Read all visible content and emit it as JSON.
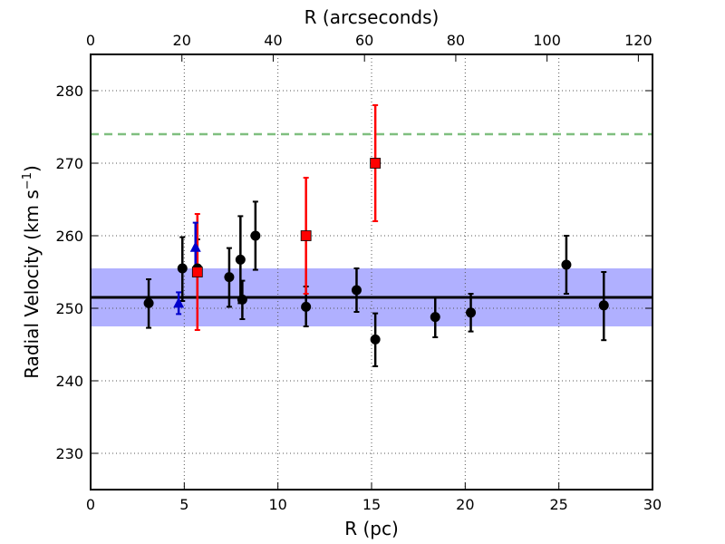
{
  "chart_data": {
    "type": "scatter",
    "xlabel": "R (pc)",
    "ylabel": "Radial Velocity (km s",
    "ylabel_sup": "−1",
    "ylabel_close": ")",
    "x2label": "R (arcseconds)",
    "xlim": [
      0,
      30
    ],
    "ylim": [
      225,
      285
    ],
    "x2lim": [
      0,
      123.1
    ],
    "xticks": [
      0,
      5,
      10,
      15,
      20,
      25,
      30
    ],
    "yticks": [
      230,
      240,
      250,
      260,
      270,
      280
    ],
    "x2ticks": [
      0,
      20,
      40,
      60,
      80,
      100,
      120
    ],
    "grid": true,
    "reference_lines": [
      {
        "kind": "mean",
        "y": 251.5,
        "color": "#000000",
        "style": "solid"
      },
      {
        "kind": "dashed",
        "y": 274.0,
        "color": "#7fbf7f",
        "style": "dashed"
      }
    ],
    "band": {
      "y_low": 247.5,
      "y_high": 255.5,
      "color": "#b0b0ff"
    },
    "series": [
      {
        "marker": "circle",
        "color": "#000000",
        "points": [
          {
            "x": 3.1,
            "y": 250.7,
            "lo": 247.3,
            "hi": 254.0
          },
          {
            "x": 4.9,
            "y": 255.5,
            "lo": 251.0,
            "hi": 259.8
          },
          {
            "x": 5.7,
            "y": 255.5,
            "lo": 251.5,
            "hi": 259.5
          },
          {
            "x": 7.4,
            "y": 254.3,
            "lo": 250.2,
            "hi": 258.3
          },
          {
            "x": 8.0,
            "y": 256.7,
            "lo": 250.7,
            "hi": 262.7
          },
          {
            "x": 8.1,
            "y": 251.2,
            "lo": 248.5,
            "hi": 253.8
          },
          {
            "x": 8.8,
            "y": 260.0,
            "lo": 255.3,
            "hi": 264.7
          },
          {
            "x": 11.5,
            "y": 250.2,
            "lo": 247.5,
            "hi": 253.0
          },
          {
            "x": 14.2,
            "y": 252.5,
            "lo": 249.5,
            "hi": 255.5
          },
          {
            "x": 15.2,
            "y": 245.7,
            "lo": 242.0,
            "hi": 249.3
          },
          {
            "x": 18.4,
            "y": 248.8,
            "lo": 246.0,
            "hi": 251.5
          },
          {
            "x": 20.3,
            "y": 249.4,
            "lo": 246.8,
            "hi": 252.0
          },
          {
            "x": 25.4,
            "y": 256.0,
            "lo": 252.0,
            "hi": 260.0
          },
          {
            "x": 27.4,
            "y": 250.4,
            "lo": 245.6,
            "hi": 255.0
          }
        ]
      },
      {
        "marker": "square",
        "color": "#ff0000",
        "points": [
          {
            "x": 5.7,
            "y": 255.0,
            "lo": 247.0,
            "hi": 263.0
          },
          {
            "x": 11.5,
            "y": 260.0,
            "lo": 252.0,
            "hi": 268.0
          },
          {
            "x": 15.2,
            "y": 270.0,
            "lo": 262.0,
            "hi": 278.0
          }
        ]
      },
      {
        "marker": "triangle",
        "color": "#0000cc",
        "points": [
          {
            "x": 4.7,
            "y": 250.7,
            "lo": 249.2,
            "hi": 252.2
          },
          {
            "x": 5.6,
            "y": 258.4,
            "lo": 254.8,
            "hi": 261.8
          }
        ]
      }
    ]
  }
}
